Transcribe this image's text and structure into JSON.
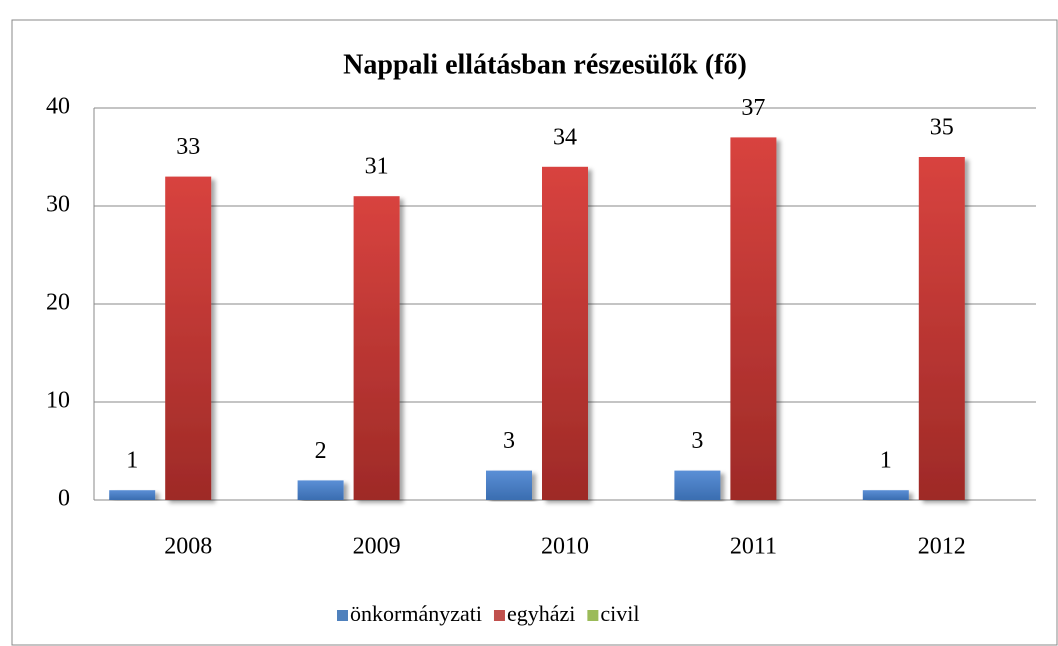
{
  "chart_data": {
    "type": "bar",
    "title": "Nappali ellátásban részesülők (fő)",
    "categories": [
      "2008",
      "2009",
      "2010",
      "2011",
      "2012"
    ],
    "series": [
      {
        "name": "önkormányzati",
        "color": "#4f81bd",
        "values": [
          1,
          2,
          3,
          3,
          1
        ]
      },
      {
        "name": "egyházi",
        "color": "#c0504d",
        "values": [
          33,
          31,
          34,
          37,
          35
        ]
      },
      {
        "name": "civil",
        "color": "#9bbb59",
        "values": [
          null,
          null,
          null,
          null,
          null
        ]
      }
    ],
    "ylim": [
      0,
      40
    ],
    "yticks": [
      0,
      10,
      20,
      30,
      40
    ],
    "grid": true,
    "legend": "bottom"
  }
}
